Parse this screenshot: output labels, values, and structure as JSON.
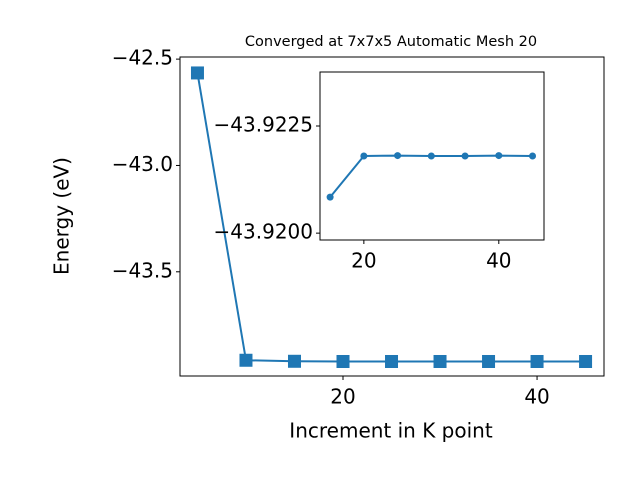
{
  "chart_data": [
    {
      "type": "line",
      "title": "Converged at 7x7x5 Automatic Mesh 20",
      "x_label": "Increment in K point",
      "y_label": "Energy (eV)",
      "x": [
        5,
        10,
        15,
        20,
        25,
        30,
        35,
        40,
        45
      ],
      "series": [
        {
          "color": "#1f77b4",
          "marker": "square",
          "values": [
            -42.565,
            -43.916,
            -43.9208,
            -43.9218,
            -43.9218,
            -43.9218,
            -43.9218,
            -43.9218,
            -43.9218
          ]
        }
      ],
      "xlim": [
        3.2,
        46.9
      ],
      "xticks": [
        20,
        40
      ],
      "ylim": [
        -43.99,
        -42.49
      ],
      "yticks": [
        {
          "value": -42.5,
          "label": "−42.5"
        },
        {
          "value": -43.0,
          "label": "−43.0"
        },
        {
          "value": -43.5,
          "label": "−43.5"
        }
      ]
    },
    {
      "type": "line",
      "inset": true,
      "x": [
        15,
        20,
        25,
        30,
        35,
        40,
        45
      ],
      "series": [
        {
          "color": "#1f77b4",
          "marker": "circle",
          "values": [
            -43.92084,
            -43.9218,
            -43.92181,
            -43.9218,
            -43.9218,
            -43.92181,
            -43.9218
          ]
        }
      ],
      "xlim": [
        13.5,
        46.7
      ],
      "xticks": [
        20,
        40
      ],
      "ylim": [
        -43.91984,
        -43.92376
      ],
      "y_inverted": true,
      "yticks": [
        {
          "value": -43.9225,
          "label": "−43.9225"
        },
        {
          "value": -43.92,
          "label": "−43.9200"
        }
      ]
    }
  ]
}
